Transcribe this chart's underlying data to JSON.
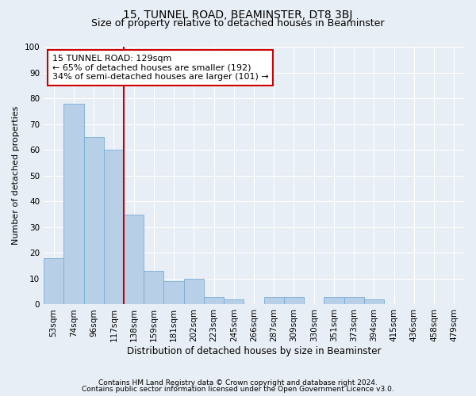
{
  "title": "15, TUNNEL ROAD, BEAMINSTER, DT8 3BJ",
  "subtitle": "Size of property relative to detached houses in Beaminster",
  "xlabel": "Distribution of detached houses by size in Beaminster",
  "ylabel": "Number of detached properties",
  "categories": [
    "53sqm",
    "74sqm",
    "96sqm",
    "117sqm",
    "138sqm",
    "159sqm",
    "181sqm",
    "202sqm",
    "223sqm",
    "245sqm",
    "266sqm",
    "287sqm",
    "309sqm",
    "330sqm",
    "351sqm",
    "373sqm",
    "394sqm",
    "415sqm",
    "436sqm",
    "458sqm",
    "479sqm"
  ],
  "values": [
    18,
    78,
    65,
    60,
    35,
    13,
    9,
    10,
    3,
    2,
    0,
    3,
    3,
    0,
    3,
    3,
    2,
    0,
    0,
    0,
    0
  ],
  "bar_color": "#b8cfe8",
  "bar_edge_color": "#7aadd4",
  "vline_color": "#cc0000",
  "vline_xindex": 3.5,
  "annotation_text_line1": "15 TUNNEL ROAD: 129sqm",
  "annotation_text_line2": "← 65% of detached houses are smaller (192)",
  "annotation_text_line3": "34% of semi-detached houses are larger (101) →",
  "annotation_box_color": "#cc0000",
  "ylim": [
    0,
    100
  ],
  "yticks": [
    0,
    10,
    20,
    30,
    40,
    50,
    60,
    70,
    80,
    90,
    100
  ],
  "footer1": "Contains HM Land Registry data © Crown copyright and database right 2024.",
  "footer2": "Contains public sector information licensed under the Open Government Licence v3.0.",
  "background_color": "#e8eef5",
  "plot_background": "#e8eef5",
  "grid_color": "#ffffff",
  "title_fontsize": 10,
  "subtitle_fontsize": 9,
  "xlabel_fontsize": 8.5,
  "ylabel_fontsize": 8,
  "tick_fontsize": 7.5,
  "annotation_fontsize": 8,
  "footer_fontsize": 6.5
}
